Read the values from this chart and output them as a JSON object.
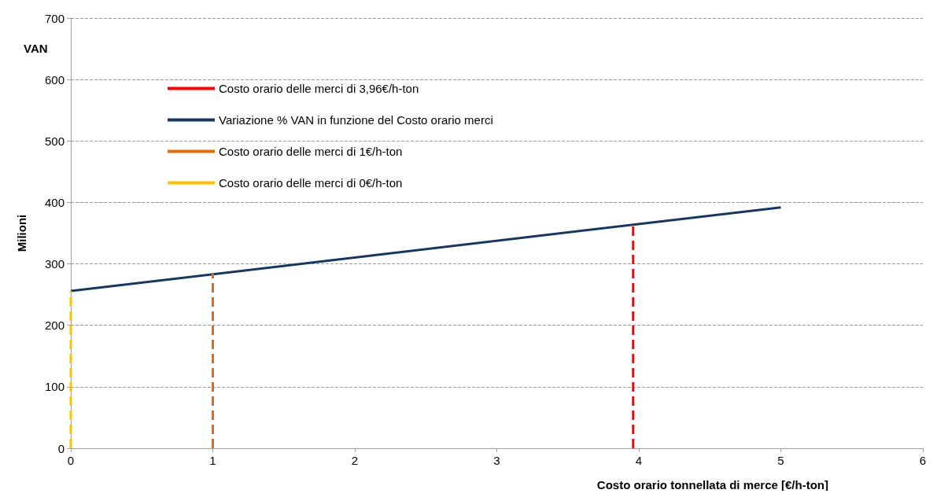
{
  "chart_data": {
    "type": "line",
    "xlabel": "Costo orario tonnellata di merce [€/h-ton]",
    "ylabel": "Milioni",
    "annotations": [
      "VAN"
    ],
    "xlim": [
      0,
      6
    ],
    "xticks": [
      0,
      1,
      2,
      3,
      4,
      5,
      6
    ],
    "ylim": [
      0,
      700
    ],
    "yticks": [
      0,
      100,
      200,
      300,
      400,
      500,
      600,
      700
    ],
    "grid": "y",
    "legend": "top left",
    "marker": "none",
    "series": [
      {
        "name": "Costo orario delle merci di 3,96€/h-ton",
        "color": "#ff0000",
        "line_style": "dashed",
        "x": [
          3.96,
          3.96
        ],
        "values": [
          0,
          364
        ]
      },
      {
        "name": "Variazione % VAN in funzione del Costo orario merci",
        "color": "#17375e",
        "line_style": "solid",
        "x": [
          0,
          5
        ],
        "values": [
          256,
          392
        ]
      },
      {
        "name": "Costo orario delle merci di 1€/h-ton",
        "color": "#e46c0a",
        "line_style": "dashed",
        "x": [
          1,
          1
        ],
        "values": [
          0,
          284
        ]
      },
      {
        "name": "Costo orario delle merci di 0€/h-ton",
        "color": "#ffc000",
        "line_style": "dashed",
        "x": [
          0,
          0
        ],
        "values": [
          0,
          256
        ]
      }
    ]
  }
}
